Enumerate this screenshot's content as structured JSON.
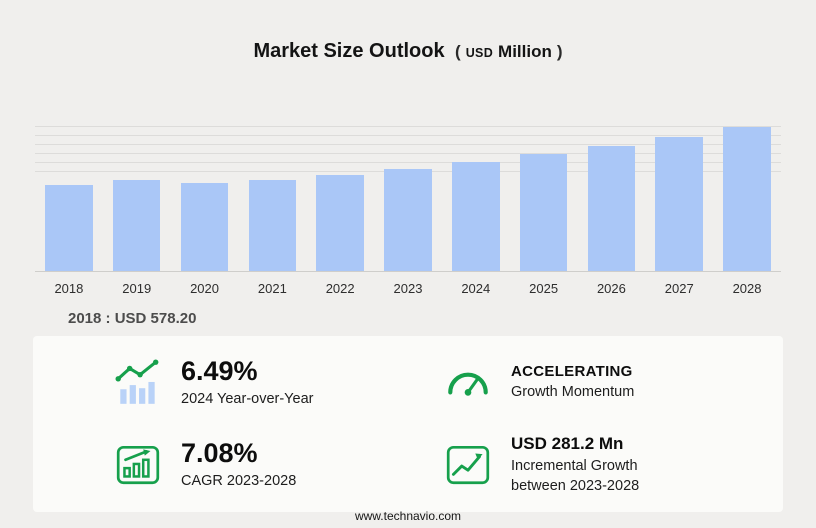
{
  "title": {
    "main": "Market Size Outlook",
    "paren_open": "(",
    "currency": "USD",
    "unit": "Million",
    "paren_close": ")"
  },
  "chart_data": {
    "type": "bar",
    "title": "Market Size Outlook (USD Million)",
    "categories": [
      "2018",
      "2019",
      "2020",
      "2021",
      "2022",
      "2023",
      "2024",
      "2025",
      "2026",
      "2027",
      "2028"
    ],
    "values": [
      578.2,
      612,
      592,
      613,
      647,
      689,
      734,
      789,
      845,
      905,
      970
    ],
    "xlabel": "",
    "ylabel": "USD Million",
    "ylim": [
      0,
      980
    ],
    "grid": "horizontal-top-region-only",
    "legend": "none",
    "bar_color": "#aac7f7"
  },
  "base_year_note": "2018 : USD 578.20",
  "stats": [
    {
      "icon": "yoy-bar-trend-icon",
      "value": "6.49%",
      "label": "2024 Year-over-Year"
    },
    {
      "icon": "speedometer-icon",
      "value": "ACCELERATING",
      "label": "Growth Momentum"
    },
    {
      "icon": "cagr-bar-chart-icon",
      "value": "7.08%",
      "label": "CAGR 2023-2028"
    },
    {
      "icon": "incremental-growth-icon",
      "value": "USD 281.2 Mn",
      "label": "Incremental Growth between 2023-2028"
    }
  ],
  "footer": {
    "url": "www.technavio.com"
  },
  "colors": {
    "accent_green": "#16a04c",
    "bar_blue": "#aac7f7",
    "background": "#f0efed",
    "panel": "#fbfbf9"
  }
}
